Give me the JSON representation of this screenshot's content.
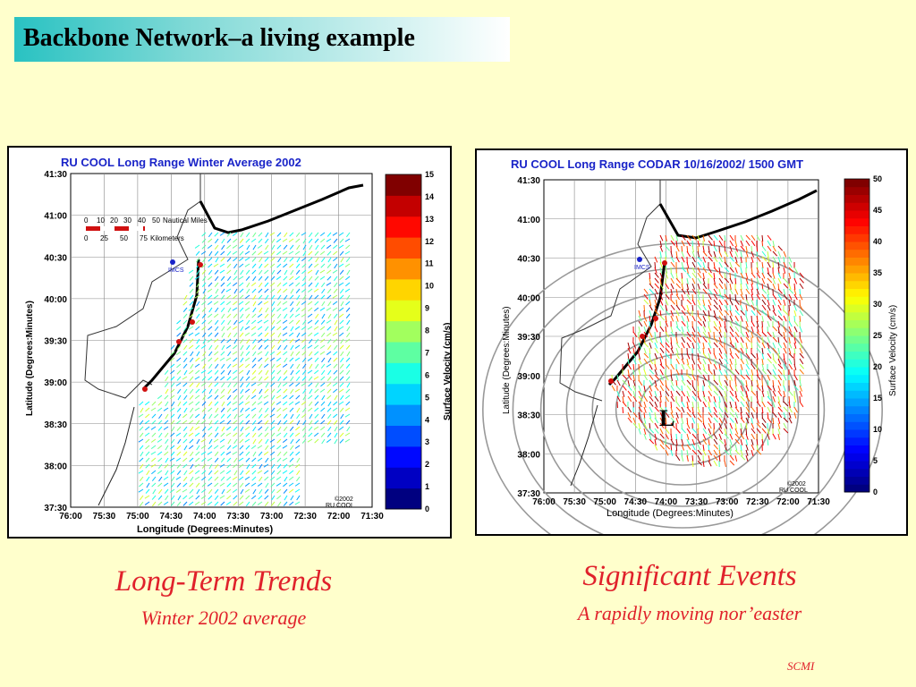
{
  "slide": {
    "title": "Backbone Network–a living example",
    "footer": "SCMI"
  },
  "left_panel": {
    "caption_main": "Long-Term Trends",
    "caption_sub": "Winter 2002 average",
    "map": {
      "title": "RU COOL Long Range Winter Average 2002",
      "xlabel": "Longitude (Degrees:Minutes)",
      "ylabel": "Latitude (Degrees:Minutes)",
      "colorbar_label": "Surface Velocity (cm/s)",
      "colorbar_ticks": [
        "0",
        "1",
        "2",
        "3",
        "4",
        "5",
        "6",
        "7",
        "8",
        "9",
        "10",
        "11",
        "12",
        "13",
        "14",
        "15"
      ],
      "x_ticks": [
        "76:00",
        "75:30",
        "75:00",
        "74:30",
        "74:00",
        "73:30",
        "73:00",
        "72:30",
        "72:00",
        "71:30"
      ],
      "y_ticks": [
        "41:30",
        "41:00",
        "40:30",
        "40:00",
        "39:30",
        "39:00",
        "38:30",
        "38:00",
        "37:30"
      ],
      "scale_nautical": [
        "0",
        "10",
        "20",
        "30",
        "40",
        "50",
        "Nautical Miles"
      ],
      "scale_km": [
        "0",
        "25",
        "50",
        "75",
        "Kilometers"
      ],
      "site_label": "IMCS",
      "copyright": "©2002",
      "credit": "RU COOL"
    }
  },
  "right_panel": {
    "caption_main": "Significant Events",
    "caption_sub": "A rapidly moving nor’easter",
    "map": {
      "title": "RU COOL Long Range CODAR 10/16/2002/ 1500 GMT",
      "xlabel": "Longitude (Degrees:Minutes)",
      "ylabel": "Latitude (Degrees:Minutes)",
      "colorbar_label": "Surface Velocity (cm/s)",
      "colorbar_ticks": [
        "0",
        "5",
        "10",
        "15",
        "20",
        "25",
        "30",
        "35",
        "40",
        "45",
        "50"
      ],
      "x_ticks": [
        "76:00",
        "75:30",
        "75:00",
        "74:30",
        "74:00",
        "73:30",
        "73:00",
        "72:30",
        "72:00",
        "71:30"
      ],
      "y_ticks": [
        "41:30",
        "41:00",
        "40:30",
        "40:00",
        "39:30",
        "39:00",
        "38:30",
        "38:00",
        "37:30"
      ],
      "site_label": "IMCS",
      "low_marker": "L",
      "copyright": "©2002",
      "credit": "RU COOL"
    }
  }
}
